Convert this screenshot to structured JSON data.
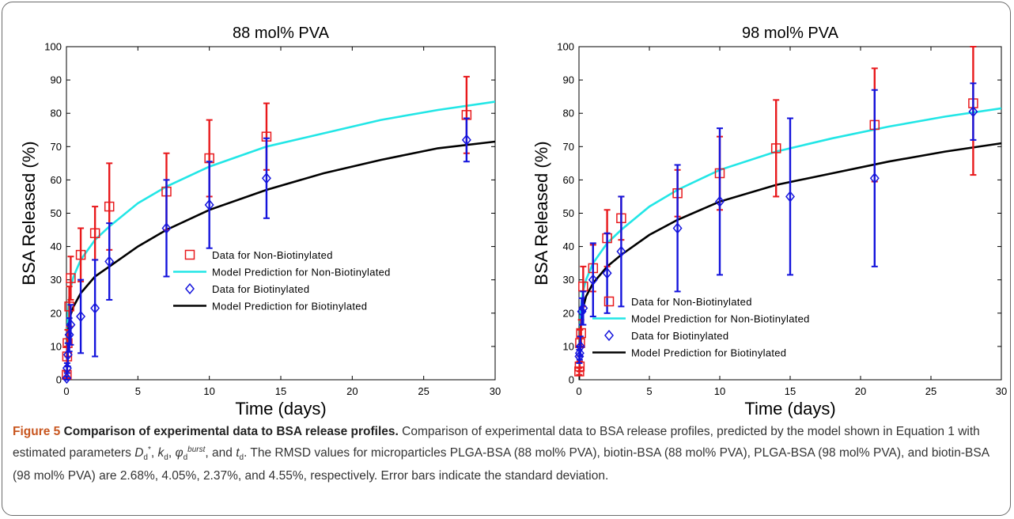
{
  "figure": {
    "number": "Figure 5",
    "title": "Comparison of experimental data to BSA release profiles.",
    "caption_part1": "Comparison of experimental data to BSA release profiles, predicted by the model shown in Equation 1 with estimated parameters",
    "caption_part2": "and",
    "caption_part3": ". The RMSD values for microparticles PLGA-BSA (88 mol% PVA), biotin-BSA (88 mol% PVA), PLGA-BSA (98 mol% PVA), and biotin-BSA (98 mol% PVA) are 2.68%, 4.05%, 2.37%, and 4.55%, respectively. Error bars indicate the standard deviation.",
    "param_D": "D",
    "param_D_sub": "d",
    "param_D_sup": "*",
    "param_k": "k",
    "param_k_sub": "d",
    "param_phi": "φ",
    "param_phi_sub": "d",
    "param_phi_sup": "burst",
    "param_t": "t",
    "param_t_sub": "d"
  },
  "colors": {
    "non_biotinylated_data": "#e8191c",
    "non_biotinylated_model": "#22e6e6",
    "biotinylated_data": "#1414dc",
    "biotinylated_model": "#000000"
  },
  "chart_data": [
    {
      "type": "scatter",
      "title": "88 mol% PVA",
      "xlabel": "Time (days)",
      "ylabel": "BSA Released (%)",
      "xlim": [
        0,
        30
      ],
      "ylim": [
        0,
        100
      ],
      "xticks": [
        0,
        5,
        10,
        15,
        20,
        25,
        30
      ],
      "yticks": [
        0,
        10,
        20,
        30,
        40,
        50,
        60,
        70,
        80,
        90,
        100
      ],
      "legend_position": "center-left",
      "series": [
        {
          "name": "Data for Non-Biotinylated",
          "kind": "marker-square",
          "x": [
            0.02,
            0.05,
            0.08,
            0.2,
            0.3,
            1,
            2,
            3,
            7,
            10,
            14,
            28
          ],
          "y": [
            1.5,
            7,
            11,
            22,
            30.5,
            37.5,
            44,
            52,
            56.5,
            66.5,
            73,
            79.5
          ],
          "err": [
            1,
            3,
            4,
            6,
            6.5,
            8,
            8,
            13,
            11.5,
            11.5,
            10,
            11.5
          ]
        },
        {
          "name": "Model Prediction for Non-Biotinylated",
          "kind": "line",
          "x": [
            0,
            0.1,
            0.25,
            0.5,
            1,
            2,
            3,
            5,
            7,
            10,
            14,
            18,
            22,
            26,
            30
          ],
          "y": [
            0,
            20,
            27,
            31,
            36,
            42,
            46,
            53,
            58,
            64,
            70,
            74,
            78,
            81,
            83.5
          ]
        },
        {
          "name": "Data for Biotinylated",
          "kind": "marker-diamond",
          "x": [
            0.02,
            0.05,
            0.1,
            0.2,
            0.3,
            1,
            2,
            3,
            7,
            10,
            14,
            28
          ],
          "y": [
            0.5,
            3.5,
            7.5,
            13.5,
            16.5,
            19,
            21.5,
            35.5,
            45.5,
            52.5,
            60.5,
            72
          ],
          "err": [
            0.5,
            1.5,
            3.5,
            5,
            6,
            11,
            14.5,
            11.5,
            14.5,
            13,
            12,
            6.5
          ]
        },
        {
          "name": "Model Prediction for Biotinylated",
          "kind": "line",
          "x": [
            0,
            0.1,
            0.25,
            0.5,
            1,
            2,
            3,
            5,
            7,
            10,
            14,
            18,
            22,
            26,
            30
          ],
          "y": [
            0,
            14,
            19,
            22,
            26,
            31,
            34,
            40,
            45,
            51,
            57,
            62,
            66,
            69.5,
            71.5
          ]
        }
      ]
    },
    {
      "type": "scatter",
      "title": "98 mol% PVA",
      "xlabel": "Time (days)",
      "ylabel": "BSA Released (%)",
      "xlim": [
        0,
        30
      ],
      "ylim": [
        0,
        100
      ],
      "xticks": [
        0,
        5,
        10,
        15,
        20,
        25,
        30
      ],
      "yticks": [
        0,
        10,
        20,
        30,
        40,
        50,
        60,
        70,
        80,
        90,
        100
      ],
      "legend_position": "lower-right",
      "series": [
        {
          "name": "Data for Non-Biotinylated",
          "kind": "marker-square",
          "x": [
            0.02,
            0.05,
            0.08,
            0.15,
            0.3,
            1,
            2,
            3,
            7,
            10,
            14,
            21,
            28
          ],
          "y": [
            2.5,
            4,
            11,
            14,
            28,
            33.5,
            42.5,
            48.5,
            56,
            62,
            69.5,
            76.5,
            83
          ],
          "err": [
            1,
            1.5,
            4,
            4,
            6,
            7,
            8.5,
            6.5,
            7,
            11,
            14.5,
            17,
            21.5
          ]
        },
        {
          "name": "Model Prediction for Non-Biotinylated",
          "kind": "line",
          "x": [
            0,
            0.1,
            0.25,
            0.5,
            1,
            2,
            3,
            5,
            7,
            10,
            14,
            18,
            22,
            26,
            30
          ],
          "y": [
            0,
            20,
            26,
            30,
            35,
            41,
            45,
            52,
            57,
            63,
            68.5,
            72.5,
            76,
            79,
            81.5
          ]
        },
        {
          "name": "Data for Biotinylated",
          "kind": "marker-diamond",
          "x": [
            0.02,
            0.05,
            0.1,
            0.2,
            0.3,
            1,
            2,
            3,
            7,
            10,
            15,
            21,
            28
          ],
          "y": [
            7,
            8,
            10,
            20.5,
            21.5,
            30,
            32,
            38.5,
            45.5,
            53.5,
            55,
            60.5,
            80.5
          ],
          "err": [
            2,
            2,
            3,
            4,
            5,
            11,
            12,
            16.5,
            19,
            22,
            23.5,
            26.5,
            8.5
          ]
        },
        {
          "name": "Model Prediction for Biotinylated",
          "kind": "line",
          "x": [
            0,
            0.1,
            0.25,
            0.5,
            1,
            2,
            3,
            5,
            7,
            10,
            14,
            18,
            22,
            26,
            30
          ],
          "y": [
            0,
            15,
            21,
            25,
            29,
            34,
            37.5,
            43.5,
            48,
            53.5,
            58.5,
            62,
            65.5,
            68.5,
            71
          ]
        }
      ]
    }
  ]
}
